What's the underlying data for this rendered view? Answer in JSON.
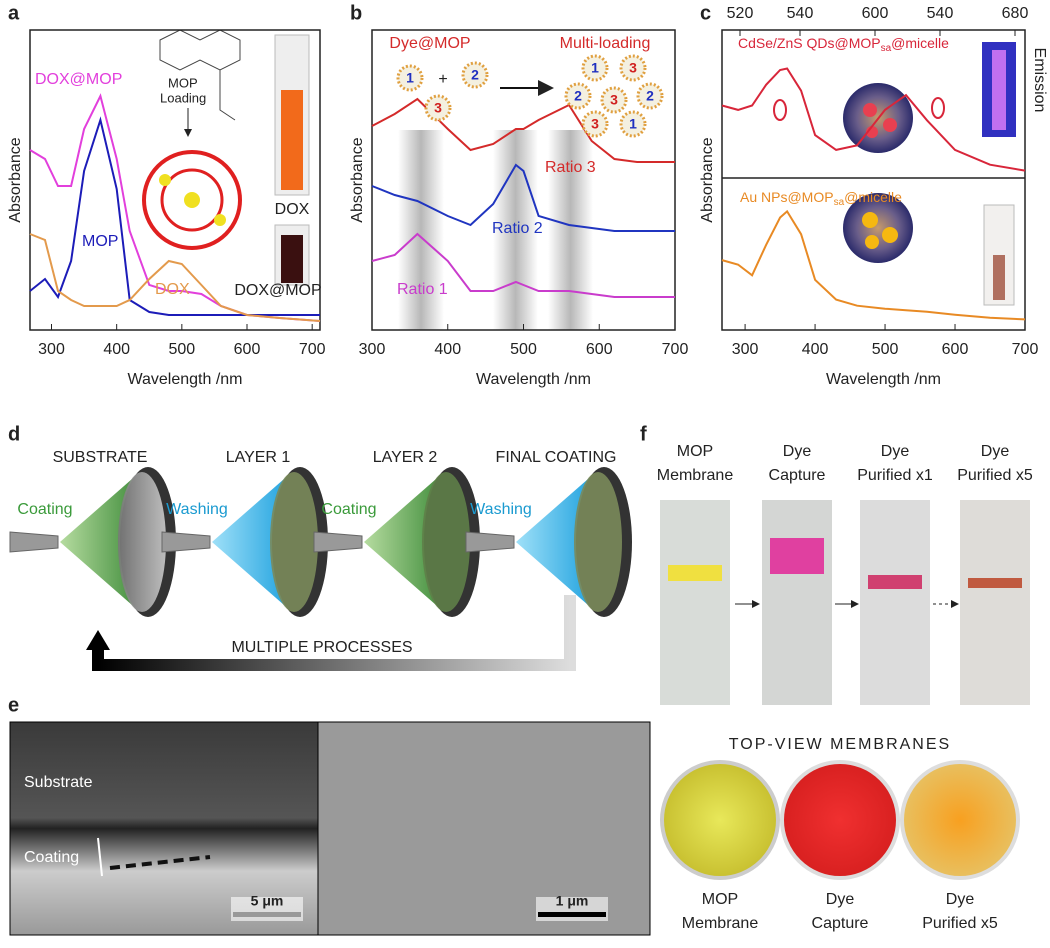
{
  "chart_data": [
    {
      "type": "line",
      "panel_label": "a",
      "y_label": "Absorbance",
      "x_label": "Wavelength /nm",
      "x": [
        267,
        290,
        310,
        330,
        350,
        375,
        400,
        420,
        450,
        480,
        500,
        530,
        560,
        600,
        650,
        712
      ],
      "xlim": [
        267,
        712
      ],
      "xticks": [
        300,
        400,
        500,
        600,
        700
      ],
      "ylim": [
        0,
        1
      ],
      "series": [
        {
          "name": "DOX@MOP",
          "color": "#e23fdc",
          "values": [
            0.6,
            0.57,
            0.48,
            0.48,
            0.67,
            0.78,
            0.57,
            0.33,
            0.15,
            0.13,
            0.13,
            0.12,
            0.08,
            0.05,
            0.04,
            0.03
          ]
        },
        {
          "name": "MOP",
          "color": "#1c1cb8",
          "values": [
            0.13,
            0.17,
            0.11,
            0.23,
            0.53,
            0.7,
            0.47,
            0.1,
            0.06,
            0.05,
            0.05,
            0.05,
            0.05,
            0.05,
            0.05,
            0.05
          ]
        },
        {
          "name": "DOX",
          "color": "#e39a4c",
          "values": [
            0.32,
            0.3,
            0.13,
            0.1,
            0.08,
            0.08,
            0.08,
            0.1,
            0.17,
            0.23,
            0.22,
            0.15,
            0.08,
            0.05,
            0.04,
            0.03
          ]
        }
      ],
      "annotations": {
        "loading": [
          "MOP",
          "Loading"
        ],
        "vial_top": "DOX",
        "vial_bottom": "DOX@MOP"
      }
    },
    {
      "type": "line",
      "panel_label": "b",
      "y_label": "Absorbance",
      "x_label": "Wavelength /nm",
      "x": [
        300,
        330,
        360,
        400,
        430,
        460,
        490,
        500,
        520,
        560,
        590,
        620,
        650,
        700
      ],
      "xlim": [
        300,
        700
      ],
      "xticks": [
        300,
        400,
        500,
        600,
        700
      ],
      "ylim": [
        0,
        1
      ],
      "series": [
        {
          "name": "Ratio 3",
          "color": "#d42a2a",
          "values": [
            0.68,
            0.72,
            0.77,
            0.67,
            0.6,
            0.62,
            0.67,
            0.67,
            0.7,
            0.75,
            0.63,
            0.57,
            0.56,
            0.56
          ]
        },
        {
          "name": "Ratio 2",
          "color": "#2035c0",
          "values": [
            0.48,
            0.45,
            0.43,
            0.38,
            0.35,
            0.42,
            0.55,
            0.53,
            0.38,
            0.35,
            0.34,
            0.33,
            0.33,
            0.33
          ]
        },
        {
          "name": "Ratio 1",
          "color": "#c93ccc",
          "values": [
            0.23,
            0.25,
            0.32,
            0.23,
            0.13,
            0.13,
            0.16,
            0.15,
            0.13,
            0.13,
            0.12,
            0.11,
            0.11,
            0.11
          ]
        }
      ],
      "annotations": {
        "left": "Dye@MOP",
        "right": "Multi-loading",
        "plus": "+",
        "particles_left": [
          "1",
          "2",
          "3"
        ],
        "particles_right": [
          "1",
          "3",
          "2",
          "3",
          "2",
          "3",
          "1"
        ]
      }
    },
    {
      "type": "line",
      "panel_label": "c",
      "y_label": "Absorbance",
      "x_label": "Wavelength /nm",
      "y2_label": "Emission",
      "layout": "stacked",
      "x": [
        267,
        290,
        310,
        330,
        350,
        360,
        380,
        400,
        430,
        460,
        500,
        530,
        560,
        600,
        650,
        700
      ],
      "xlim": [
        267,
        700
      ],
      "xticks": [
        300,
        400,
        500,
        600,
        700
      ],
      "ylim": [
        0,
        1
      ],
      "top_axis_labels": [
        520,
        540,
        600,
        540,
        680
      ],
      "series": [
        {
          "name": "CdSe/ZnS QDs@MOP",
          "name_sub": "sa",
          "name_end": "@micelle",
          "color": "#d8263a",
          "values": [
            0.49,
            0.46,
            0.49,
            0.63,
            0.73,
            0.74,
            0.59,
            0.29,
            0.19,
            0.22,
            0.46,
            0.56,
            0.39,
            0.19,
            0.09,
            0.05
          ]
        },
        {
          "name": "Au NPs@MOP",
          "name_sub": "sa",
          "name_end": "@micelle",
          "color": "#e88a24",
          "values": [
            0.46,
            0.43,
            0.36,
            0.56,
            0.74,
            0.78,
            0.63,
            0.33,
            0.2,
            0.16,
            0.14,
            0.13,
            0.12,
            0.1,
            0.08,
            0.07
          ]
        }
      ]
    }
  ],
  "panel_d": {
    "label": "d",
    "steps": [
      "SUBSTRATE",
      "LAYER 1",
      "LAYER 2",
      "FINAL COATING"
    ],
    "actions": [
      "Coating",
      "Washing",
      "Coating",
      "Washing"
    ],
    "loop": "MULTIPLE PROCESSES"
  },
  "panel_e": {
    "label": "e",
    "substrate": "Substrate",
    "coating": "Coating",
    "scale_left": "5 μm",
    "scale_right": "1 μm"
  },
  "panel_f": {
    "label": "f",
    "tubes": [
      [
        "MOP",
        "Membrane"
      ],
      [
        "Dye",
        "Capture"
      ],
      [
        "Dye",
        "Purified x1"
      ],
      [
        "Dye",
        "Purified x5"
      ]
    ],
    "top_view_title": "TOP-VIEW MEMBRANES",
    "membranes": [
      [
        "MOP",
        "Membrane"
      ],
      [
        "Dye",
        "Capture"
      ],
      [
        "Dye",
        "Purified x5"
      ]
    ]
  }
}
